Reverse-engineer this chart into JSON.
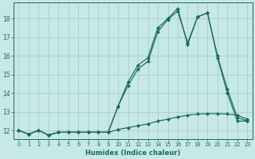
{
  "xlabel": "Humidex (Indice chaleur)",
  "bg_color": "#c6e8e6",
  "grid_color": "#aacfcc",
  "line_color": "#1a6b5a",
  "xlim": [
    -0.5,
    23.5
  ],
  "ylim": [
    11.55,
    18.85
  ],
  "yticks": [
    12,
    13,
    14,
    15,
    16,
    17,
    18
  ],
  "xticks": [
    0,
    1,
    2,
    3,
    4,
    5,
    6,
    7,
    8,
    9,
    10,
    11,
    12,
    13,
    14,
    15,
    16,
    17,
    18,
    19,
    20,
    21,
    22,
    23
  ],
  "series1_x": [
    0,
    1,
    2,
    3,
    4,
    5,
    6,
    7,
    8,
    9,
    10,
    11,
    12,
    13,
    14,
    15,
    16,
    17,
    18,
    19,
    20,
    21,
    22,
    23
  ],
  "series1_y": [
    12.0,
    11.8,
    12.0,
    11.75,
    11.9,
    11.9,
    11.9,
    11.9,
    11.9,
    11.9,
    13.3,
    14.6,
    15.5,
    15.9,
    17.5,
    18.0,
    18.55,
    16.6,
    18.1,
    18.3,
    15.9,
    14.0,
    12.5,
    12.5
  ],
  "series2_x": [
    0,
    1,
    2,
    3,
    4,
    5,
    6,
    7,
    8,
    9,
    10,
    11,
    12,
    13,
    14,
    15,
    16,
    17,
    18,
    19,
    20,
    21,
    22,
    23
  ],
  "series2_y": [
    12.0,
    11.8,
    12.0,
    11.75,
    11.9,
    11.9,
    11.9,
    11.9,
    11.9,
    11.9,
    13.3,
    14.4,
    15.3,
    15.7,
    17.3,
    17.95,
    18.4,
    16.7,
    18.1,
    18.3,
    16.0,
    14.2,
    12.7,
    12.5
  ],
  "series3_x": [
    0,
    1,
    2,
    3,
    4,
    5,
    6,
    7,
    8,
    9,
    10,
    11,
    12,
    13,
    14,
    15,
    16,
    17,
    18,
    19,
    20,
    21,
    22,
    23
  ],
  "series3_y": [
    12.0,
    11.8,
    12.0,
    11.75,
    11.9,
    11.9,
    11.9,
    11.9,
    11.9,
    11.9,
    12.05,
    12.15,
    12.25,
    12.35,
    12.5,
    12.6,
    12.72,
    12.82,
    12.88,
    12.9,
    12.9,
    12.88,
    12.82,
    12.6
  ]
}
